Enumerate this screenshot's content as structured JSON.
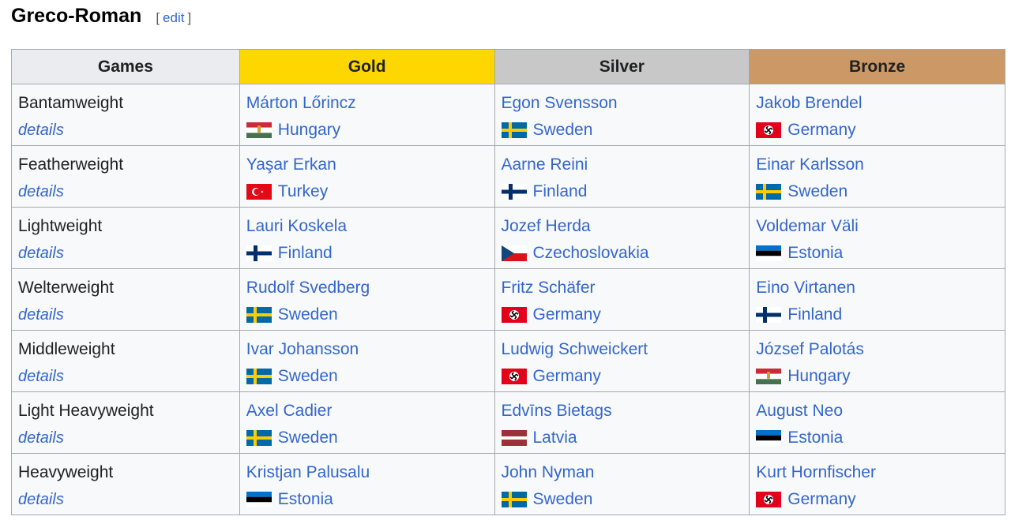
{
  "section": {
    "title": "Greco-Roman",
    "edit_open": "[",
    "edit_label": "edit",
    "edit_close": "]"
  },
  "table": {
    "headers": {
      "games": "Games",
      "gold": "Gold",
      "silver": "Silver",
      "bronze": "Bronze"
    },
    "colors": {
      "gold": "#ffd700",
      "silver": "#c8c8c8",
      "bronze": "#cc9966",
      "link": "#3366cc"
    },
    "rows": [
      {
        "event": "Bantamweight",
        "details": "details",
        "gold": {
          "name": "Márton Lőrincz",
          "country": "Hungary",
          "flag": "hungary-flag-icon"
        },
        "silver": {
          "name": "Egon Svensson",
          "country": "Sweden",
          "flag": "sweden-flag-icon"
        },
        "bronze": {
          "name": "Jakob Brendel",
          "country": "Germany",
          "flag": "germany-flag-icon"
        }
      },
      {
        "event": "Featherweight",
        "details": "details",
        "gold": {
          "name": "Yaşar Erkan",
          "country": "Turkey",
          "flag": "turkey-flag-icon"
        },
        "silver": {
          "name": "Aarne Reini",
          "country": "Finland",
          "flag": "finland-flag-icon"
        },
        "bronze": {
          "name": "Einar Karlsson",
          "country": "Sweden",
          "flag": "sweden-flag-icon"
        }
      },
      {
        "event": "Lightweight",
        "details": "details",
        "gold": {
          "name": "Lauri Koskela",
          "country": "Finland",
          "flag": "finland-flag-icon"
        },
        "silver": {
          "name": "Jozef Herda",
          "country": "Czechoslovakia",
          "flag": "czechoslovakia-flag-icon"
        },
        "bronze": {
          "name": "Voldemar Väli",
          "country": "Estonia",
          "flag": "estonia-flag-icon"
        }
      },
      {
        "event": "Welterweight",
        "details": "details",
        "gold": {
          "name": "Rudolf Svedberg",
          "country": "Sweden",
          "flag": "sweden-flag-icon"
        },
        "silver": {
          "name": "Fritz Schäfer",
          "country": "Germany",
          "flag": "germany-flag-icon"
        },
        "bronze": {
          "name": "Eino Virtanen",
          "country": "Finland",
          "flag": "finland-flag-icon"
        }
      },
      {
        "event": "Middleweight",
        "details": "details",
        "gold": {
          "name": "Ivar Johansson",
          "country": "Sweden",
          "flag": "sweden-flag-icon"
        },
        "silver": {
          "name": "Ludwig Schweickert",
          "country": "Germany",
          "flag": "germany-flag-icon"
        },
        "bronze": {
          "name": "József Palotás",
          "country": "Hungary",
          "flag": "hungary-flag-icon"
        }
      },
      {
        "event": "Light Heavyweight",
        "details": "details",
        "gold": {
          "name": "Axel Cadier",
          "country": "Sweden",
          "flag": "sweden-flag-icon"
        },
        "silver": {
          "name": "Edvīns Bietags",
          "country": "Latvia",
          "flag": "latvia-flag-icon"
        },
        "bronze": {
          "name": "August Neo",
          "country": "Estonia",
          "flag": "estonia-flag-icon"
        }
      },
      {
        "event": "Heavyweight",
        "details": "details",
        "gold": {
          "name": "Kristjan Palusalu",
          "country": "Estonia",
          "flag": "estonia-flag-icon"
        },
        "silver": {
          "name": "John Nyman",
          "country": "Sweden",
          "flag": "sweden-flag-icon"
        },
        "bronze": {
          "name": "Kurt Hornfischer",
          "country": "Germany",
          "flag": "germany-flag-icon"
        }
      }
    ]
  }
}
